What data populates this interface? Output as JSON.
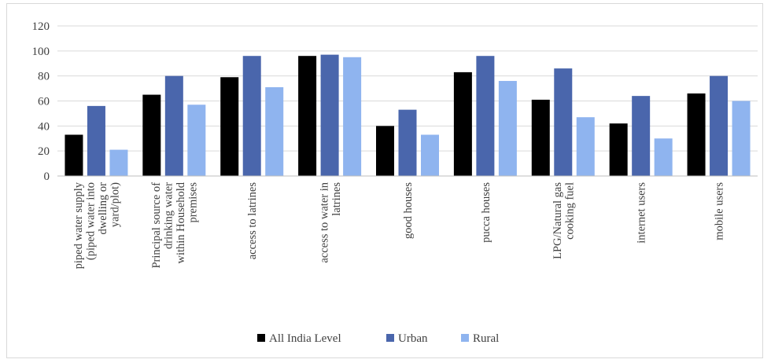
{
  "chart_data": {
    "type": "bar",
    "categories": [
      [
        "piped water supply",
        "(piped water into",
        "dwelling or",
        "yard/plot)"
      ],
      [
        "Principal source of",
        "drinking water",
        "within Household",
        "premises"
      ],
      [
        "access to latrines"
      ],
      [
        "access to water in",
        "latrines"
      ],
      [
        "good houses"
      ],
      [
        "pucca houses"
      ],
      [
        "LPG/Natural gas",
        "cooking fuel"
      ],
      [
        "internet users"
      ],
      [
        "mobile users"
      ]
    ],
    "series": [
      {
        "name": "All India Level",
        "color": "#000000",
        "values": [
          33,
          65,
          79,
          96,
          40,
          83,
          61,
          42,
          66
        ]
      },
      {
        "name": "Urban",
        "color": "#4a66ac",
        "values": [
          56,
          80,
          96,
          97,
          53,
          96,
          86,
          64,
          80
        ]
      },
      {
        "name": "Rural",
        "color": "#8fb4ef",
        "values": [
          21,
          57,
          71,
          95,
          33,
          76,
          47,
          30,
          60
        ]
      }
    ],
    "ylim": [
      0,
      120
    ],
    "yticks": [
      0,
      20,
      40,
      60,
      80,
      100,
      120
    ],
    "grid": true,
    "legend_position": "bottom"
  }
}
